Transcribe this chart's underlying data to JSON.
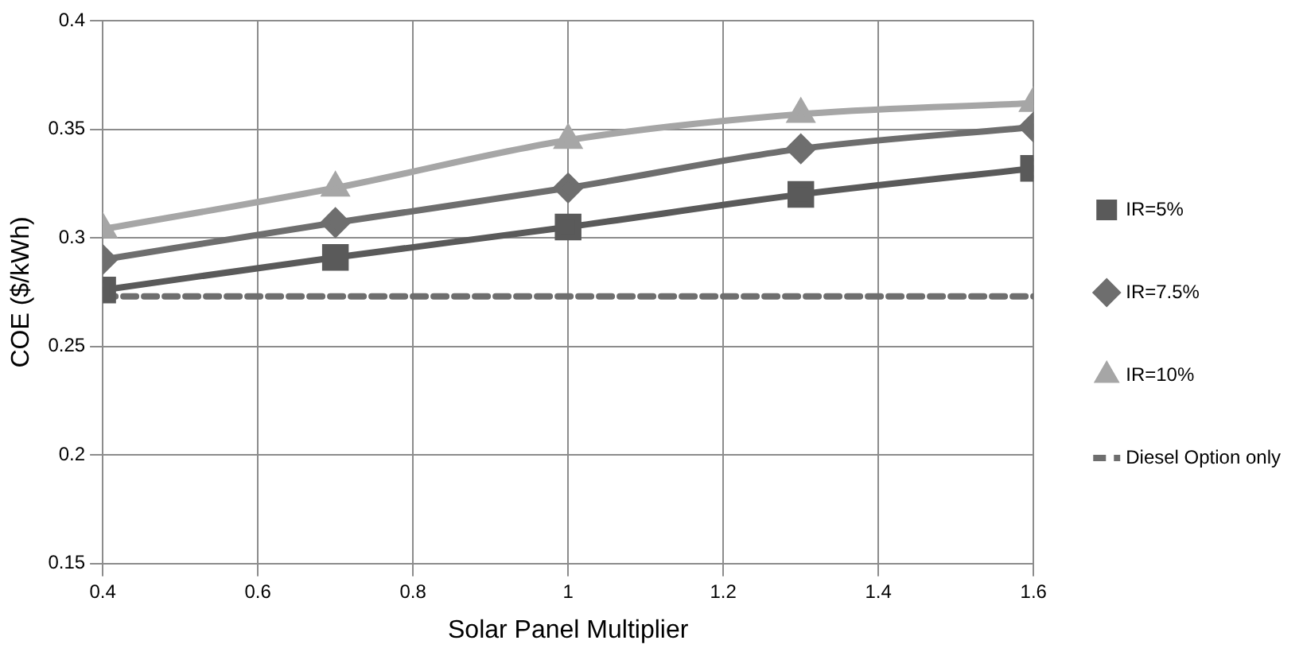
{
  "chart_data": {
    "type": "line",
    "xlabel": "Solar Panel Multiplier",
    "ylabel": "COE ($/kWh)",
    "x": [
      0.4,
      0.7,
      1.0,
      1.3,
      1.6
    ],
    "xlim": [
      0.4,
      1.6
    ],
    "xticks": [
      0.4,
      0.6,
      0.8,
      {
        "value": 1,
        "label": "1"
      },
      1.2,
      1.4,
      1.6
    ],
    "ylim": [
      0.15,
      0.4
    ],
    "yticks": [
      0.15,
      {
        "value": 0.2,
        "label": "0.2"
      },
      0.25,
      {
        "value": 0.3,
        "label": "0.3"
      },
      0.35,
      {
        "value": 0.4,
        "label": "0.4"
      }
    ],
    "grid": true,
    "legend": "right",
    "series": [
      {
        "name": "IR=5%",
        "color": "#5a5a5a",
        "marker": "square",
        "line_style": "solid",
        "values": [
          0.276,
          0.291,
          0.305,
          0.32,
          0.332
        ]
      },
      {
        "name": "IR=7.5%",
        "color": "#6e6e6e",
        "marker": "diamond",
        "line_style": "solid",
        "values": [
          0.29,
          0.307,
          0.323,
          0.341,
          0.351
        ]
      },
      {
        "name": "IR=10%",
        "color": "#a6a6a6",
        "marker": "triangle",
        "line_style": "solid",
        "values": [
          0.304,
          0.323,
          0.345,
          0.357,
          0.362
        ]
      },
      {
        "name": "Diesel Option only",
        "color": "#6e6e6e",
        "marker": "none",
        "line_style": "dashed",
        "values": [
          0.273,
          0.273,
          0.273,
          0.273,
          0.273
        ]
      }
    ]
  }
}
